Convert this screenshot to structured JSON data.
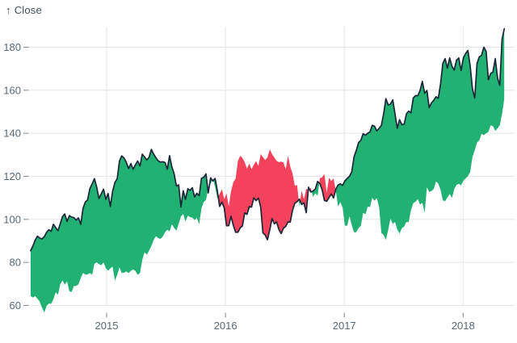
{
  "header": {
    "arrow": "↑",
    "label": "Close"
  },
  "chart_data": {
    "type": "area",
    "subtype": "difference-band",
    "title": "",
    "xlabel": "",
    "ylabel": "Close",
    "legend": "none",
    "grid": "on",
    "x_tick_labels": [
      "2015",
      "2016",
      "2017",
      "2018"
    ],
    "x_tick_years": [
      2015,
      2016,
      2017,
      2018
    ],
    "y_tick_values": [
      60,
      80,
      100,
      120,
      140,
      160,
      180
    ],
    "x_domain_years": [
      2014.36,
      2018.42
    ],
    "y_domain": [
      52,
      194
    ],
    "band_rule": "fill between close and close 52 weeks earlier; positive color where close is higher, negative color where lower; dark line traces close",
    "lag_weeks": 52,
    "start_year": 2013.364,
    "week_step_years": 0.019165,
    "series": [
      {
        "name": "close-weekly",
        "values": [
          64.3,
          63.6,
          64.3,
          63.1,
          61.7,
          59,
          56.7,
          59.8,
          60.9,
          60.7,
          62.9,
          66.1,
          64.9,
          69.9,
          71.6,
          69.6,
          71.2,
          66.4,
          66.3,
          69,
          69,
          69.8,
          72.7,
          75.1,
          74.3,
          74.4,
          75,
          74.2,
          79.4,
          80,
          79.2,
          78.6,
          80,
          77.3,
          76.1,
          77.2,
          78,
          71.5,
          74.2,
          77.7,
          75,
          75.2,
          75.8,
          75,
          76.1,
          76.7,
          76,
          74.2,
          75,
          81.1,
          84.7,
          83.6,
          85.4,
          87.7,
          90.4,
          92.2,
          91.3,
          90.9,
          92,
          94,
          95.2,
          94.4,
          97.7,
          96.1,
          94.7,
          98,
          101.3,
          102.5,
          99,
          101.7,
          101,
          100.8,
          99.6,
          100.7,
          97.7,
          105.2,
          108,
          109,
          114.2,
          116.5,
          118.9,
          115,
          109.7,
          111.8,
          114,
          109.3,
          112,
          106,
          113,
          117.2,
          118.9,
          127.1,
          129.5,
          128.5,
          126.6,
          123.6,
          125.9,
          123.3,
          125.3,
          127.1,
          124.8,
          130.3,
          129,
          127.6,
          128.8,
          132.5,
          130.3,
          128.7,
          127.2,
          126.6,
          126.8,
          126.4,
          123.3,
          129.6,
          124.5,
          121.3,
          115.5,
          116,
          105.8,
          113.3,
          109.3,
          114.2,
          113.5,
          114.7,
          110.4,
          112.1,
          111,
          119.1,
          119.5,
          121.1,
          112.3,
          119.3,
          117.8,
          119,
          113.2,
          106,
          108,
          105.3,
          97,
          97.1,
          101.4,
          97.3,
          94,
          94,
          96,
          96.9,
          103,
          102.3,
          105.9,
          105.7,
          110,
          108.7,
          109.9,
          105.7,
          93.7,
          92.7,
          90.5,
          95.2,
          100.4,
          97.9,
          98.8,
          95.3,
          93.4,
          95.9,
          96.7,
          98.8,
          98.7,
          104.2,
          107.5,
          108.2,
          109.4,
          106.9,
          107.7,
          103.1,
          114.9,
          112.7,
          113.1,
          114.1,
          117.6,
          116.6,
          113.7,
          108.8,
          108.4,
          110.1,
          111.8,
          109.9,
          114,
          116,
          116.5,
          115.8,
          117.9,
          119,
          120,
          122,
          129.1,
          132.1,
          135.7,
          136.7,
          139.8,
          139.1,
          140,
          140.6,
          143.7,
          143.3,
          141.1,
          142.3,
          143.7,
          149,
          156.1,
          153.1,
          153.6,
          155.5,
          149,
          142.3,
          146.3,
          144,
          144.2,
          149,
          150.3,
          149.5,
          156.4,
          157.5,
          157.5,
          159.9,
          164.1,
          158.6,
          159.9,
          151.9,
          154.1,
          155.3,
          157,
          156.3,
          163.1,
          172.5,
          174.7,
          170.2,
          175,
          171.1,
          169.4,
          174,
          175,
          169.2,
          175,
          177.1,
          178.5,
          171.5,
          160.5,
          156.4,
          172.4,
          175.5,
          176.2,
          180,
          178,
          164.9,
          167.8,
          168.4,
          174.7,
          165.7,
          162.3,
          183.8,
          188.6
        ]
      }
    ],
    "colors": {
      "positive_fill": "#21B173",
      "negative_fill": "#F4415C",
      "line": "#1B2737",
      "grid": "#E2E5E9",
      "tick_mark": "#7C8792",
      "tick_text": "#5A6873",
      "label_text": "#414E5A",
      "background": "#FFFFFF"
    }
  }
}
